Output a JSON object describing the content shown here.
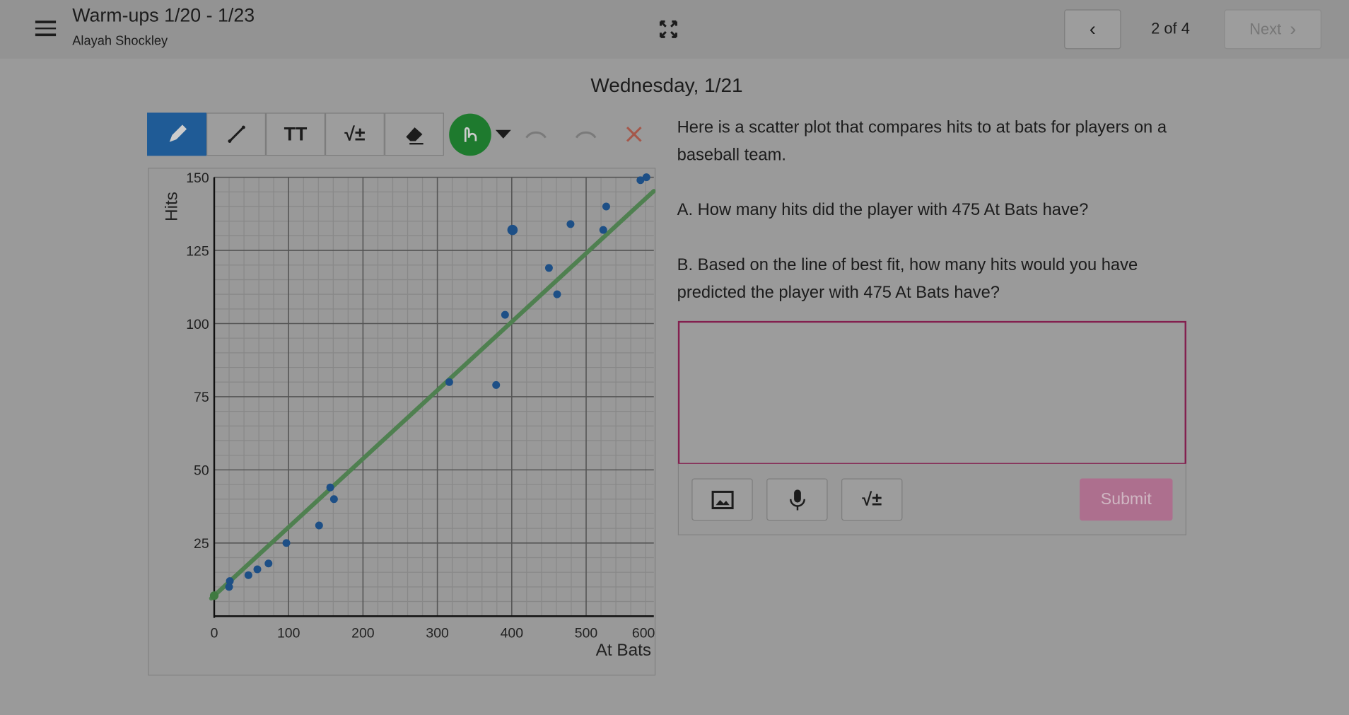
{
  "header": {
    "title": "Warm-ups 1/20 - 1/23",
    "subtitle": "Alayah Shockley",
    "page_indicator": "2 of 4",
    "next_label": "Next"
  },
  "main": {
    "day_title": "Wednesday, 1/21"
  },
  "toolbar": {
    "tools": [
      "pencil-icon",
      "line-icon",
      "text-icon",
      "math-icon",
      "eraser-icon"
    ],
    "text_tool_label": "TT",
    "math_tool_label": "√±",
    "active_color": "#1e7a2e"
  },
  "question": {
    "intro": "Here is a scatter plot that compares hits to at bats for players on a baseball team.",
    "part_a": "A.  How many hits did the player with 475 At Bats have?",
    "part_b": "B.  Based on the line of best fit, how many hits would you have predicted the player with 475 At Bats have?"
  },
  "answer": {
    "value": "",
    "math_label": "√±",
    "submit_label": "Submit"
  },
  "chart_data": {
    "type": "scatter",
    "xlabel": "At Bats",
    "ylabel": "Hits",
    "xlim": [
      0,
      591
    ],
    "ylim": [
      0,
      150
    ],
    "xticks": [
      0,
      100,
      200,
      300,
      400,
      500,
      600
    ],
    "yticks": [
      25,
      50,
      75,
      100,
      125,
      150
    ],
    "grid": true,
    "points": [
      [
        20,
        10
      ],
      [
        21,
        12
      ],
      [
        46,
        14
      ],
      [
        58,
        16
      ],
      [
        73,
        18
      ],
      [
        97,
        25
      ],
      [
        141,
        31
      ],
      [
        156,
        44
      ],
      [
        161,
        40
      ],
      [
        316,
        80
      ],
      [
        379,
        79
      ],
      [
        391,
        103
      ],
      [
        401,
        132
      ],
      [
        450,
        119
      ],
      [
        461,
        110
      ],
      [
        479,
        134
      ],
      [
        523,
        132
      ],
      [
        527,
        140
      ],
      [
        573,
        149
      ],
      [
        581,
        150
      ]
    ],
    "best_fit_line": {
      "slope": 0.234,
      "intercept": 7
    },
    "point_color": "#1d4f86",
    "line_color": "#4f8050"
  }
}
